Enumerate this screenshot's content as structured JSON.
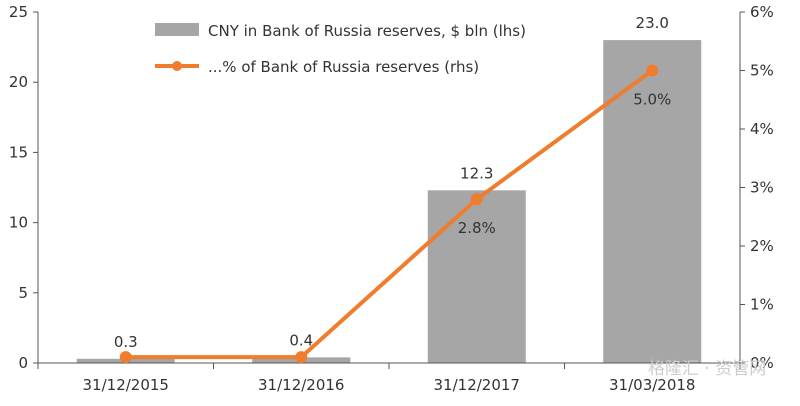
{
  "chart_data": {
    "type": "bar+line",
    "categories": [
      "31/12/2015",
      "31/12/2016",
      "31/12/2017",
      "31/03/2018"
    ],
    "series": [
      {
        "name": "CNY in Bank of Russia reserves, $ bln (lhs)",
        "type": "bar",
        "axis": "left",
        "values": [
          0.3,
          0.4,
          12.3,
          23.0
        ],
        "value_labels": [
          "0.3",
          "0.4",
          "12.3",
          "23.0"
        ],
        "color": "#a6a6a6"
      },
      {
        "name": "...% of Bank of Russia reserves (rhs)",
        "type": "line",
        "axis": "right",
        "values": [
          0.1,
          0.1,
          2.8,
          5.0
        ],
        "value_labels": [
          "",
          "",
          "2.8%",
          "5.0%"
        ],
        "color": "#f07c2e"
      }
    ],
    "y_left": {
      "min": 0,
      "max": 25,
      "ticks": [
        "0",
        "5",
        "10",
        "15",
        "20",
        "25"
      ]
    },
    "y_right": {
      "min": 0,
      "max": 6,
      "ticks": [
        "0%",
        "1%",
        "2%",
        "3%",
        "4%",
        "5%",
        "6%"
      ]
    },
    "legend_position": "top-center",
    "grid": false
  },
  "watermark": "格隆汇 · 资管网"
}
